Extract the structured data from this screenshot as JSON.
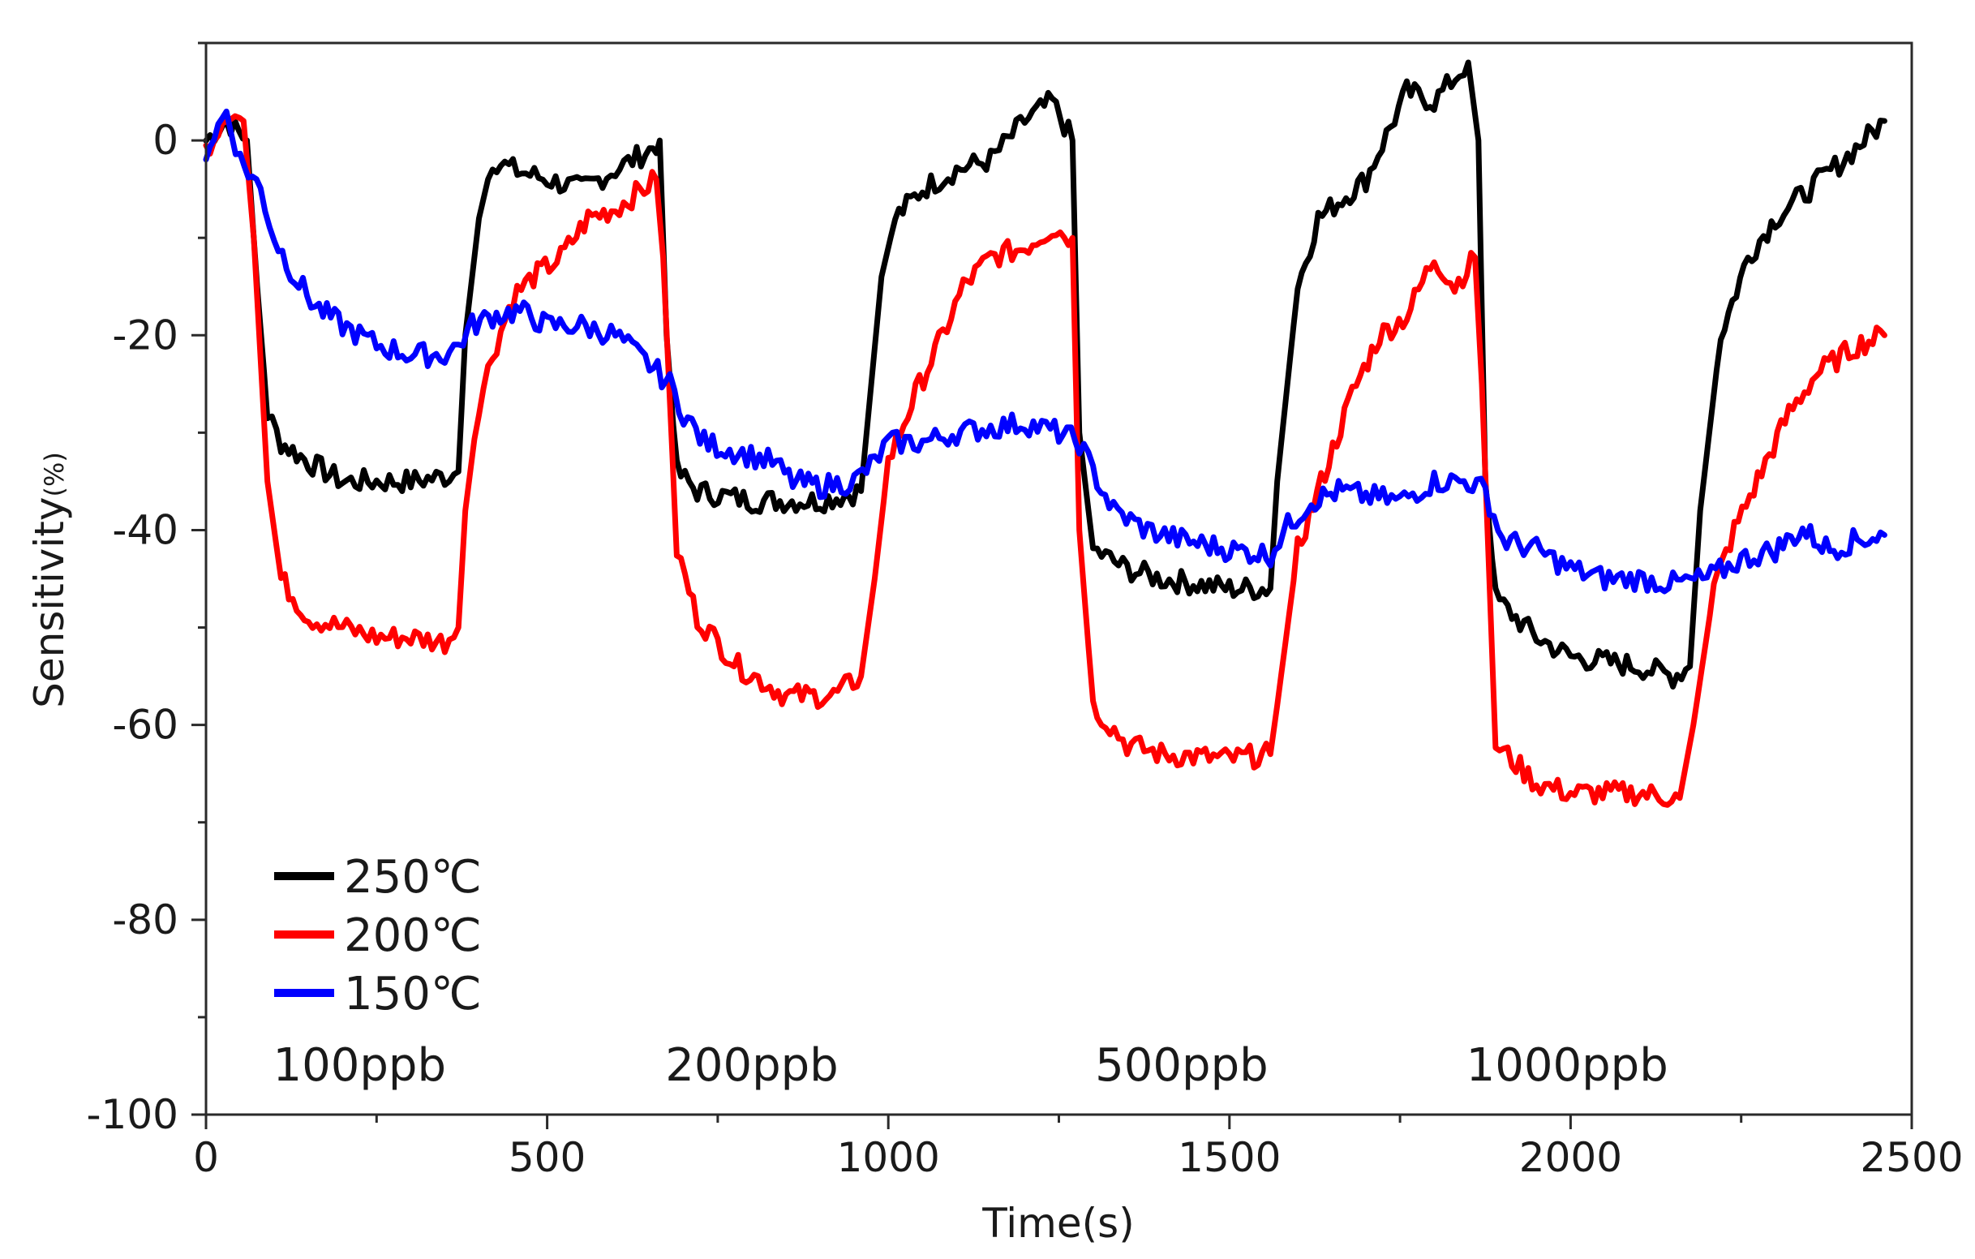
{
  "chart_data": {
    "type": "line",
    "title": "",
    "xlabel": "Time(s)",
    "ylabel": "Sensitivity",
    "ylabel_unit": "(%)",
    "xlim": [
      0,
      2500
    ],
    "ylim": [
      -100,
      10
    ],
    "x_ticks": [
      0,
      500,
      1000,
      1500,
      2000,
      2500
    ],
    "y_ticks": [
      0,
      -20,
      -40,
      -60,
      -80,
      -100
    ],
    "x_tick_labels": [
      "0",
      "500",
      "1000",
      "1500",
      "2000",
      "2500"
    ],
    "y_tick_labels": [
      "0",
      "-20",
      "-40",
      "-60",
      "-80",
      "-100"
    ],
    "legend_position": "bottom-left",
    "series": [
      {
        "name": "250℃",
        "color": "#000000",
        "points": [
          [
            0,
            0
          ],
          [
            30,
            2
          ],
          [
            60,
            0
          ],
          [
            75,
            -15
          ],
          [
            90,
            -28
          ],
          [
            110,
            -31
          ],
          [
            150,
            -33
          ],
          [
            200,
            -35
          ],
          [
            250,
            -35
          ],
          [
            300,
            -35
          ],
          [
            350,
            -34.5
          ],
          [
            370,
            -34
          ],
          [
            380,
            -20
          ],
          [
            400,
            -8
          ],
          [
            420,
            -2
          ],
          [
            450,
            -3
          ],
          [
            500,
            -4
          ],
          [
            550,
            -5
          ],
          [
            600,
            -3
          ],
          [
            650,
            -1
          ],
          [
            665,
            0
          ],
          [
            675,
            -20
          ],
          [
            690,
            -34
          ],
          [
            720,
            -36
          ],
          [
            800,
            -37
          ],
          [
            900,
            -37
          ],
          [
            960,
            -36
          ],
          [
            975,
            -25
          ],
          [
            990,
            -14
          ],
          [
            1010,
            -8
          ],
          [
            1050,
            -5
          ],
          [
            1100,
            -3
          ],
          [
            1150,
            -2
          ],
          [
            1200,
            2
          ],
          [
            1240,
            4
          ],
          [
            1270,
            0
          ],
          [
            1280,
            -30
          ],
          [
            1300,
            -42
          ],
          [
            1350,
            -44
          ],
          [
            1400,
            -45
          ],
          [
            1500,
            -46
          ],
          [
            1560,
            -46
          ],
          [
            1570,
            -35
          ],
          [
            1600,
            -15
          ],
          [
            1630,
            -8
          ],
          [
            1700,
            -4
          ],
          [
            1760,
            5
          ],
          [
            1800,
            4
          ],
          [
            1850,
            8
          ],
          [
            1865,
            0
          ],
          [
            1875,
            -35
          ],
          [
            1890,
            -47
          ],
          [
            1950,
            -51
          ],
          [
            2000,
            -53
          ],
          [
            2100,
            -54
          ],
          [
            2150,
            -55
          ],
          [
            2175,
            -54
          ],
          [
            2190,
            -38
          ],
          [
            2220,
            -20
          ],
          [
            2260,
            -12
          ],
          [
            2300,
            -8
          ],
          [
            2350,
            -5
          ],
          [
            2400,
            -2
          ],
          [
            2460,
            2
          ]
        ]
      },
      {
        "name": "200℃",
        "color": "#ff0000",
        "points": [
          [
            0,
            -1
          ],
          [
            30,
            3
          ],
          [
            55,
            2
          ],
          [
            70,
            -10
          ],
          [
            90,
            -35
          ],
          [
            110,
            -45
          ],
          [
            150,
            -49
          ],
          [
            200,
            -50
          ],
          [
            250,
            -51
          ],
          [
            300,
            -51
          ],
          [
            350,
            -51.5
          ],
          [
            370,
            -50
          ],
          [
            380,
            -38
          ],
          [
            400,
            -27
          ],
          [
            420,
            -22
          ],
          [
            450,
            -16
          ],
          [
            480,
            -14
          ],
          [
            520,
            -12
          ],
          [
            560,
            -8
          ],
          [
            600,
            -7
          ],
          [
            660,
            -4
          ],
          [
            670,
            -12
          ],
          [
            690,
            -42
          ],
          [
            720,
            -49
          ],
          [
            780,
            -54
          ],
          [
            850,
            -57
          ],
          [
            920,
            -57
          ],
          [
            960,
            -55
          ],
          [
            980,
            -45
          ],
          [
            1000,
            -33
          ],
          [
            1040,
            -26
          ],
          [
            1080,
            -20
          ],
          [
            1110,
            -15
          ],
          [
            1150,
            -12
          ],
          [
            1200,
            -11
          ],
          [
            1240,
            -9
          ],
          [
            1270,
            -10
          ],
          [
            1280,
            -40
          ],
          [
            1300,
            -58
          ],
          [
            1350,
            -62
          ],
          [
            1400,
            -63
          ],
          [
            1500,
            -63.5
          ],
          [
            1560,
            -63
          ],
          [
            1570,
            -58
          ],
          [
            1600,
            -42
          ],
          [
            1640,
            -34
          ],
          [
            1680,
            -26
          ],
          [
            1720,
            -20
          ],
          [
            1760,
            -18
          ],
          [
            1800,
            -12
          ],
          [
            1830,
            -15
          ],
          [
            1860,
            -12
          ],
          [
            1870,
            -25
          ],
          [
            1890,
            -62
          ],
          [
            1950,
            -66
          ],
          [
            2000,
            -67
          ],
          [
            2100,
            -67
          ],
          [
            2160,
            -67.5
          ],
          [
            2180,
            -60
          ],
          [
            2210,
            -46
          ],
          [
            2240,
            -40
          ],
          [
            2280,
            -34
          ],
          [
            2320,
            -28
          ],
          [
            2360,
            -24
          ],
          [
            2420,
            -21
          ],
          [
            2460,
            -20
          ]
        ]
      },
      {
        "name": "150℃",
        "color": "#0000ff",
        "points": [
          [
            0,
            -1
          ],
          [
            30,
            3
          ],
          [
            50,
            -2
          ],
          [
            80,
            -5
          ],
          [
            100,
            -10
          ],
          [
            130,
            -14
          ],
          [
            160,
            -17
          ],
          [
            200,
            -19
          ],
          [
            250,
            -21
          ],
          [
            300,
            -22
          ],
          [
            350,
            -22
          ],
          [
            370,
            -21
          ],
          [
            390,
            -19
          ],
          [
            420,
            -18
          ],
          [
            460,
            -17.5
          ],
          [
            500,
            -19
          ],
          [
            550,
            -19
          ],
          [
            600,
            -20
          ],
          [
            650,
            -23
          ],
          [
            680,
            -25
          ],
          [
            700,
            -28
          ],
          [
            730,
            -31
          ],
          [
            780,
            -32
          ],
          [
            830,
            -33
          ],
          [
            860,
            -35
          ],
          [
            900,
            -35.5
          ],
          [
            950,
            -35
          ],
          [
            980,
            -33
          ],
          [
            1000,
            -31
          ],
          [
            1050,
            -31
          ],
          [
            1100,
            -30
          ],
          [
            1150,
            -29.5
          ],
          [
            1200,
            -29
          ],
          [
            1250,
            -30
          ],
          [
            1280,
            -31
          ],
          [
            1300,
            -34
          ],
          [
            1330,
            -38
          ],
          [
            1380,
            -40
          ],
          [
            1430,
            -41
          ],
          [
            1500,
            -42
          ],
          [
            1560,
            -42.5
          ],
          [
            1580,
            -40
          ],
          [
            1620,
            -37
          ],
          [
            1660,
            -36
          ],
          [
            1700,
            -36.5
          ],
          [
            1750,
            -37
          ],
          [
            1800,
            -35
          ],
          [
            1850,
            -35
          ],
          [
            1875,
            -36
          ],
          [
            1900,
            -41
          ],
          [
            1950,
            -42
          ],
          [
            2000,
            -44
          ],
          [
            2050,
            -45
          ],
          [
            2100,
            -45
          ],
          [
            2150,
            -45.5
          ],
          [
            2200,
            -45
          ],
          [
            2250,
            -43
          ],
          [
            2300,
            -42
          ],
          [
            2340,
            -40
          ],
          [
            2380,
            -42
          ],
          [
            2420,
            -41
          ],
          [
            2460,
            -40.5
          ]
        ]
      }
    ],
    "annotations": [
      {
        "text": "100ppb",
        "x": 225,
        "y": -95
      },
      {
        "text": "200ppb",
        "x": 800,
        "y": -95
      },
      {
        "text": "500ppb",
        "x": 1430,
        "y": -95
      },
      {
        "text": "1000ppb",
        "x": 1995,
        "y": -95
      }
    ]
  }
}
